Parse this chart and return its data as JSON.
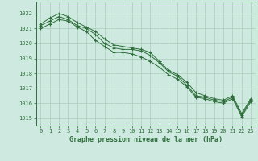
{
  "title": "Graphe pression niveau de la mer (hPa)",
  "background_color": "#ceeae0",
  "grid_color": "#aaccbb",
  "line_color": "#2d6e3a",
  "marker_color": "#2d6e3a",
  "xlim": [
    -0.5,
    23.5
  ],
  "ylim": [
    1014.5,
    1022.8
  ],
  "yticks": [
    1015,
    1016,
    1017,
    1018,
    1019,
    1020,
    1021,
    1022
  ],
  "xticks": [
    0,
    1,
    2,
    3,
    4,
    5,
    6,
    7,
    8,
    9,
    10,
    11,
    12,
    13,
    14,
    15,
    16,
    17,
    18,
    19,
    20,
    21,
    22,
    23
  ],
  "series": {
    "line1": [
      1021.2,
      1021.5,
      1021.8,
      1021.6,
      1021.2,
      1021.0,
      1020.6,
      1020.0,
      1019.7,
      1019.6,
      1019.6,
      1019.5,
      1019.2,
      1018.7,
      1018.1,
      1017.8,
      1017.2,
      1016.5,
      1016.4,
      1016.2,
      1016.1,
      1016.4,
      1015.2,
      1016.2
    ],
    "line2": [
      1021.3,
      1021.7,
      1022.0,
      1021.8,
      1021.4,
      1021.1,
      1020.8,
      1020.3,
      1019.9,
      1019.8,
      1019.7,
      1019.6,
      1019.4,
      1018.8,
      1018.2,
      1017.9,
      1017.4,
      1016.7,
      1016.5,
      1016.3,
      1016.2,
      1016.5,
      1015.3,
      1016.3
    ],
    "line3": [
      1021.0,
      1021.3,
      1021.6,
      1021.5,
      1021.1,
      1020.8,
      1020.2,
      1019.8,
      1019.4,
      1019.4,
      1019.3,
      1019.1,
      1018.8,
      1018.4,
      1017.9,
      1017.6,
      1017.1,
      1016.4,
      1016.3,
      1016.1,
      1016.0,
      1016.3,
      1015.1,
      1016.1
    ]
  }
}
